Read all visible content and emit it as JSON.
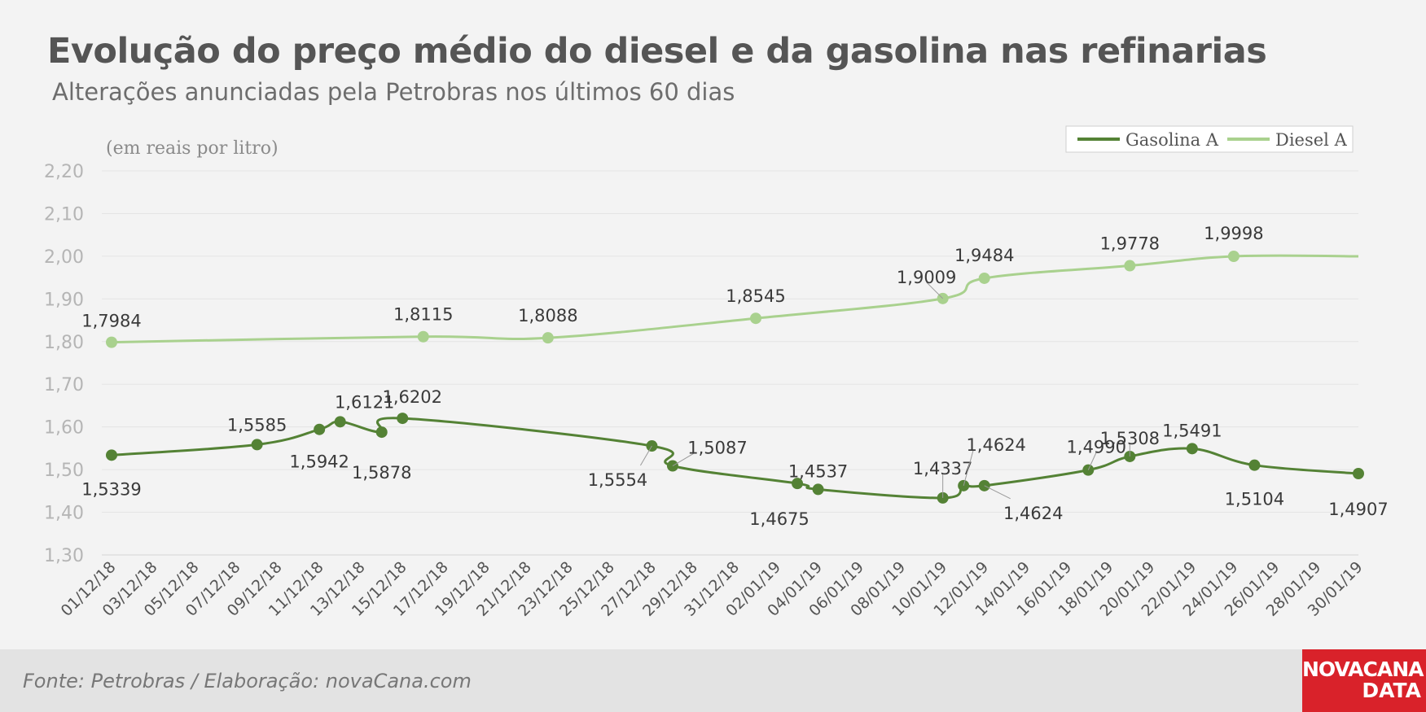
{
  "title": "Evolução do preço médio do diesel e da gasolina nas refinarias",
  "subtitle": "Alterações anunciadas pela Petrobras nos últimos 60 dias",
  "unit_label": "(em reais por litro)",
  "source": "Fonte: Petrobras / Elaboração: novaCana.com",
  "logo": {
    "line1": "NOVACANA",
    "line2": "DATA"
  },
  "colors": {
    "gasolina": "#548235",
    "diesel": "#a9d18e",
    "grid": "#e4e4e4",
    "tick": "#b5b5b5"
  },
  "chart_data": {
    "type": "line",
    "legend_position": "top-right",
    "grid": true,
    "ylim": [
      1.3,
      2.2
    ],
    "y_ticks": [
      1.3,
      1.4,
      1.5,
      1.6,
      1.7,
      1.8,
      1.9,
      2.0,
      2.1,
      2.2
    ],
    "y_tick_labels": [
      "1,30",
      "1,40",
      "1,50",
      "1,60",
      "1,70",
      "1,80",
      "1,90",
      "2,00",
      "2,10",
      "2,20"
    ],
    "x_range": [
      "2018-12-01",
      "2019-01-30"
    ],
    "x_ticks": [
      "2018-12-01",
      "2018-12-03",
      "2018-12-05",
      "2018-12-07",
      "2018-12-09",
      "2018-12-11",
      "2018-12-13",
      "2018-12-15",
      "2018-12-17",
      "2018-12-19",
      "2018-12-21",
      "2018-12-23",
      "2018-12-25",
      "2018-12-27",
      "2018-12-29",
      "2018-12-31",
      "2019-01-02",
      "2019-01-04",
      "2019-01-06",
      "2019-01-08",
      "2019-01-10",
      "2019-01-12",
      "2019-01-14",
      "2019-01-16",
      "2019-01-18",
      "2019-01-20",
      "2019-01-22",
      "2019-01-24",
      "2019-01-26",
      "2019-01-28",
      "2019-01-30"
    ],
    "x_tick_labels": [
      "01/12/18",
      "03/12/18",
      "05/12/18",
      "07/12/18",
      "09/12/18",
      "11/12/18",
      "13/12/18",
      "15/12/18",
      "17/12/18",
      "19/12/18",
      "21/12/18",
      "23/12/18",
      "25/12/18",
      "27/12/18",
      "29/12/18",
      "31/12/18",
      "02/01/19",
      "04/01/19",
      "06/01/19",
      "08/01/19",
      "10/01/19",
      "12/01/19",
      "14/01/19",
      "16/01/19",
      "18/01/19",
      "20/01/19",
      "22/01/19",
      "24/01/19",
      "26/01/19",
      "28/01/19",
      "30/01/19"
    ],
    "series": [
      {
        "name": "Gasolina A",
        "points": [
          {
            "x": "2018-12-01",
            "y": 1.5339,
            "label": "1,5339"
          },
          {
            "x": "2018-12-08",
            "y": 1.5585,
            "label": "1,5585"
          },
          {
            "x": "2018-12-11",
            "y": 1.5942,
            "label": "1,5942"
          },
          {
            "x": "2018-12-12",
            "y": 1.6121,
            "label": "1,6121"
          },
          {
            "x": "2018-12-14",
            "y": 1.5878,
            "label": "1,5878"
          },
          {
            "x": "2018-12-15",
            "y": 1.6202,
            "label": "1,6202"
          },
          {
            "x": "2018-12-27",
            "y": 1.5554,
            "label": "1,5554"
          },
          {
            "x": "2018-12-28",
            "y": 1.5087,
            "label": "1,5087"
          },
          {
            "x": "2019-01-03",
            "y": 1.4675,
            "label": "1,4675"
          },
          {
            "x": "2019-01-04",
            "y": 1.4537,
            "label": "1,4537"
          },
          {
            "x": "2019-01-10",
            "y": 1.4337,
            "label": "1,4337"
          },
          {
            "x": "2019-01-11",
            "y": 1.4624,
            "label": "1,4624"
          },
          {
            "x": "2019-01-12",
            "y": 1.4624,
            "label": "1,4624"
          },
          {
            "x": "2019-01-17",
            "y": 1.499,
            "label": "1,4990"
          },
          {
            "x": "2019-01-19",
            "y": 1.5308,
            "label": "1,5308"
          },
          {
            "x": "2019-01-22",
            "y": 1.5491,
            "label": "1,5491"
          },
          {
            "x": "2019-01-25",
            "y": 1.5104,
            "label": "1,5104"
          },
          {
            "x": "2019-01-30",
            "y": 1.4907,
            "label": "1,4907"
          }
        ],
        "line_end": "2019-01-30"
      },
      {
        "name": "Diesel A",
        "points": [
          {
            "x": "2018-12-01",
            "y": 1.7984,
            "label": "1,7984"
          },
          {
            "x": "2018-12-16",
            "y": 1.8115,
            "label": "1,8115"
          },
          {
            "x": "2018-12-22",
            "y": 1.8088,
            "label": "1,8088"
          },
          {
            "x": "2019-01-01",
            "y": 1.8545,
            "label": "1,8545"
          },
          {
            "x": "2019-01-10",
            "y": 1.9009,
            "label": "1,9009"
          },
          {
            "x": "2019-01-12",
            "y": 1.9484,
            "label": "1,9484"
          },
          {
            "x": "2019-01-19",
            "y": 1.9778,
            "label": "1,9778"
          },
          {
            "x": "2019-01-24",
            "y": 1.9998,
            "label": "1,9998"
          }
        ],
        "line_end": "2019-01-30"
      }
    ]
  }
}
